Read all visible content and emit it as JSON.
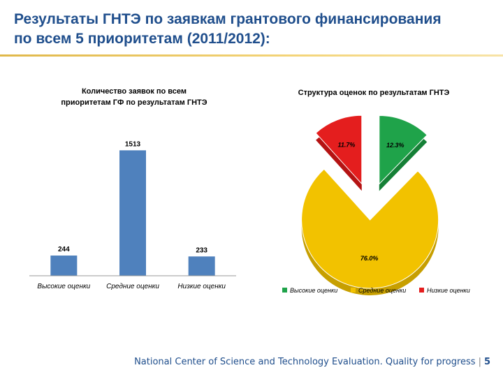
{
  "slide": {
    "title_line1": "Результаты ГНТЭ по заявкам грантового финансирования",
    "title_line2": "по всем 5 приоритетам (2011/2012):",
    "footer_text": "National Center of Science and Technology Evaluation. Quality for progress",
    "page_number": "5"
  },
  "colors": {
    "title": "#1f4e8c",
    "bar": "#4f81bd",
    "high": "#1fa34a",
    "medium": "#f2c200",
    "low": "#e41e1e"
  },
  "chart_data": [
    {
      "type": "bar",
      "title_line1": "Количество заявок по всем",
      "title_line2": "приоритетам ГФ по результатам ГНТЭ",
      "categories": [
        "Высокие оценки",
        "Средние оценки",
        "Низкие оценки"
      ],
      "values": [
        244,
        1513,
        233
      ],
      "ylim": [
        0,
        1600
      ],
      "grid": false
    },
    {
      "type": "pie",
      "title": "Структура оценок по результатам ГНТЭ",
      "labels": [
        "Высокие оценки",
        "Средние оценки",
        "Низкие оценки"
      ],
      "values": [
        12.3,
        76.0,
        11.7
      ],
      "value_labels": [
        "12.3%",
        "76.0%",
        "11.7%"
      ],
      "legend_position": "bottom"
    }
  ]
}
